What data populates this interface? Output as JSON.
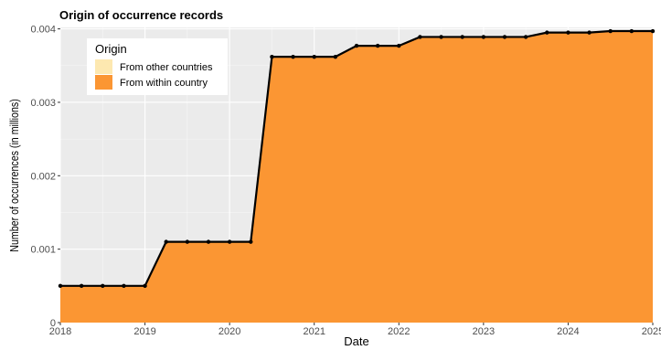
{
  "chart_data": {
    "type": "area",
    "title": "Origin of occurrence records",
    "xlabel": "Date",
    "ylabel": "Number of occurrences (in millions)",
    "x_ticks": [
      "2018",
      "2019",
      "2020",
      "2021",
      "2022",
      "2023",
      "2024",
      "2025"
    ],
    "y_ticks": [
      "0",
      "0.001",
      "0.002",
      "0.003",
      "0.004"
    ],
    "xlim": [
      2018,
      2025
    ],
    "ylim": [
      0,
      0.00402
    ],
    "grid": true,
    "legend": {
      "title": "Origin",
      "placement": "top-left",
      "entries": [
        {
          "label": "From other countries",
          "color": "#fde8b0"
        },
        {
          "label": "From within country",
          "color": "#fb9633"
        }
      ]
    },
    "series": [
      {
        "name": "From within country",
        "color": "#fb9633",
        "line_color": "#000000",
        "x": [
          2018.0,
          2018.25,
          2018.5,
          2018.75,
          2019.0,
          2019.25,
          2019.5,
          2019.75,
          2020.0,
          2020.25,
          2020.5,
          2020.75,
          2021.0,
          2021.25,
          2021.5,
          2021.75,
          2022.0,
          2022.25,
          2022.5,
          2022.75,
          2023.0,
          2023.25,
          2023.5,
          2023.75,
          2024.0,
          2024.25,
          2024.5,
          2024.75,
          2025.0
        ],
        "y": [
          0.0005,
          0.0005,
          0.0005,
          0.0005,
          0.0005,
          0.0011,
          0.0011,
          0.0011,
          0.0011,
          0.0011,
          0.00362,
          0.00362,
          0.00362,
          0.00362,
          0.00377,
          0.00377,
          0.00377,
          0.00389,
          0.00389,
          0.00389,
          0.00389,
          0.00389,
          0.00389,
          0.00395,
          0.00395,
          0.00395,
          0.00397,
          0.00397,
          0.00397
        ]
      }
    ]
  }
}
